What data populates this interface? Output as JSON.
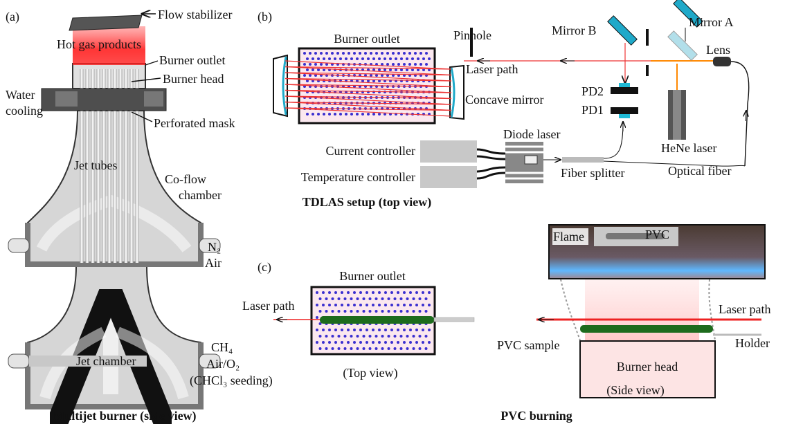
{
  "panel_a": {
    "label": "(a)",
    "flow_stabilizer": "Flow stabilizer",
    "hot_gas_products": "Hot gas products",
    "burner_outlet": "Burner outlet",
    "burner_head": "Burner head",
    "water_cooling": [
      "Water",
      "cooling"
    ],
    "perforated_mask": "Perforated mask",
    "jet_tubes": "Jet tubes",
    "co_flow_chamber": [
      "Co-flow",
      "chamber"
    ],
    "coflow_inlet": [
      "N₂",
      "Air"
    ],
    "jet_chamber": "Jet chamber",
    "jet_inlet": [
      "CH₄",
      "Air/O₂",
      "(CHCl₃ seeding)"
    ],
    "caption": "Multijet burner (side view)"
  },
  "panel_b": {
    "label": "(b)",
    "burner_outlet": "Burner outlet",
    "pinhole": "Pinhole",
    "mirror_b": "Mirror B",
    "mirror_a": "Mirror A",
    "lens": "Lens",
    "laser_path": "Laser path",
    "concave_mirror": "Concave mirror",
    "pd2": "PD2",
    "pd1": "PD1",
    "diode_laser": "Diode laser",
    "current_controller": "Current controller",
    "temperature_controller": "Temperature controller",
    "fiber_splitter": "Fiber splitter",
    "hene_laser": "HeNe laser",
    "optical_fiber": "Optical fiber",
    "caption": "TDLAS setup (top view)"
  },
  "panel_c": {
    "label": "(c)",
    "burner_outlet": "Burner outlet",
    "laser_path_top": "Laser path",
    "top_view": "(Top view)",
    "flame": "Flame",
    "pvc": "PVC",
    "laser_path_side": "Laser path",
    "pvc_sample": "PVC sample",
    "holder": "Holder",
    "burner_head": "Burner head",
    "side_view": "(Side view)",
    "caption": "PVC burning"
  }
}
